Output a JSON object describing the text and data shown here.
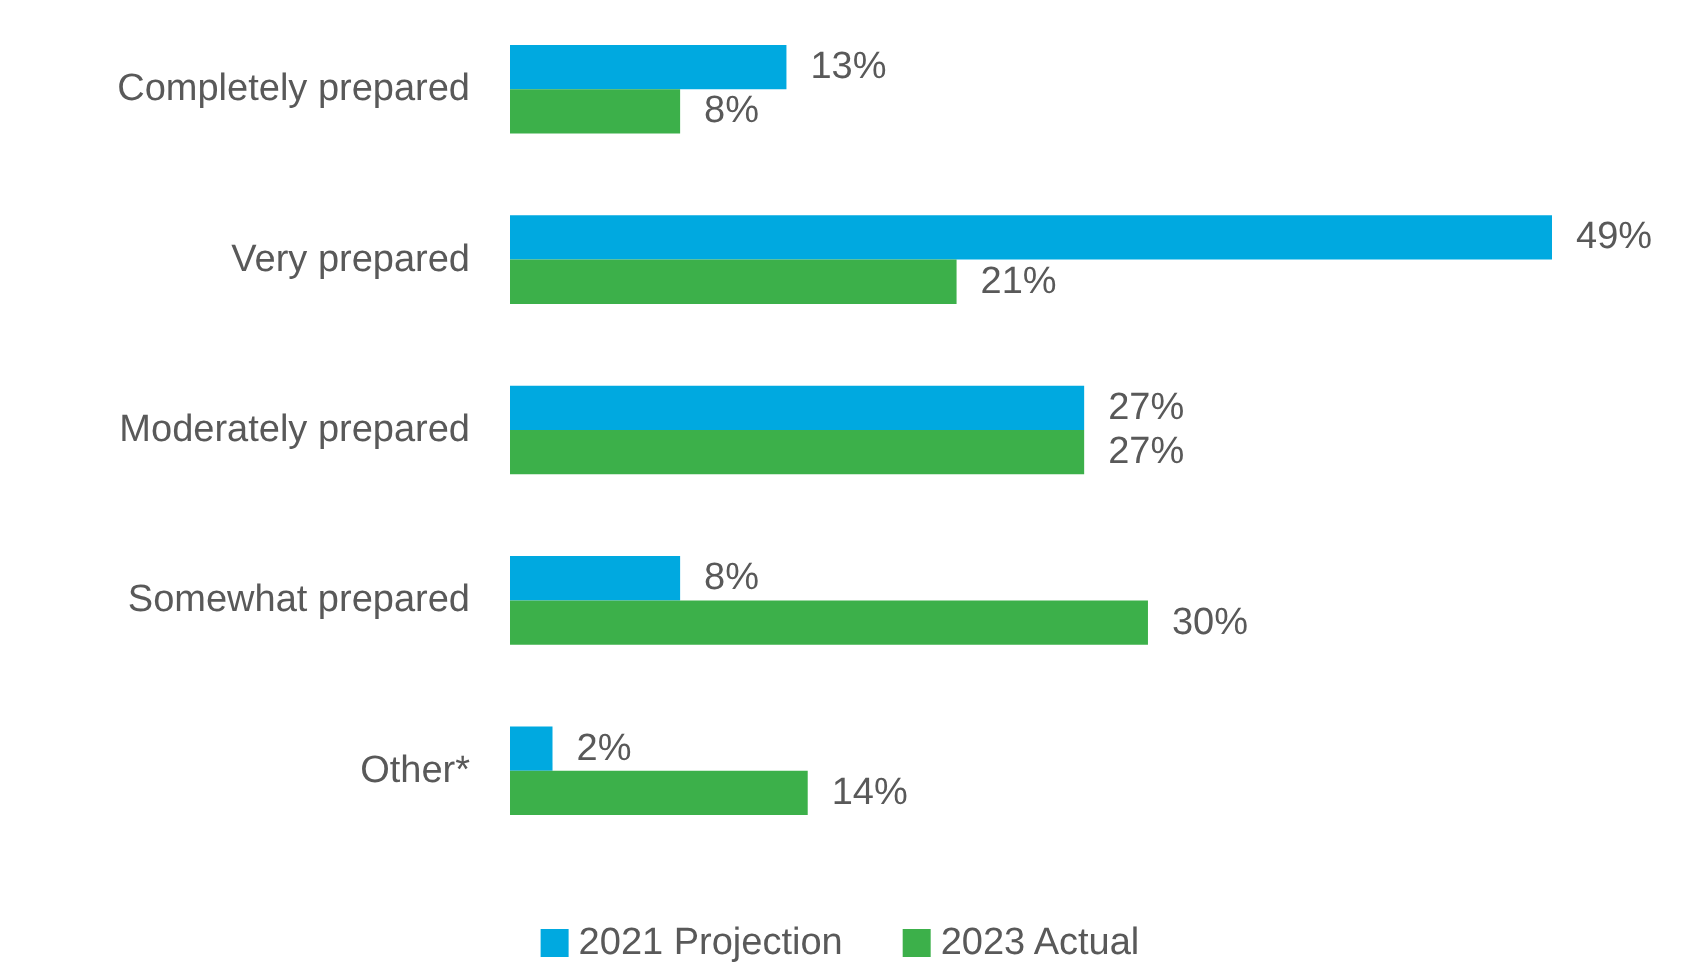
{
  "chart_data": {
    "type": "bar",
    "orientation": "horizontal",
    "categories": [
      "Completely prepared",
      "Very prepared",
      "Moderately prepared",
      "Somewhat prepared",
      "Other*"
    ],
    "series": [
      {
        "name": "2021 Projection",
        "color": "#00a9e0",
        "values": [
          13,
          49,
          27,
          8,
          2
        ],
        "value_labels": [
          "13%",
          "49%",
          "27%",
          "8%",
          "2%"
        ]
      },
      {
        "name": "2023 Actual",
        "color": "#3cb04a",
        "values": [
          8,
          21,
          27,
          30,
          14
        ],
        "value_labels": [
          "8%",
          "21%",
          "27%",
          "30%",
          "14%"
        ]
      }
    ],
    "grid": false,
    "legend": "bottom"
  }
}
